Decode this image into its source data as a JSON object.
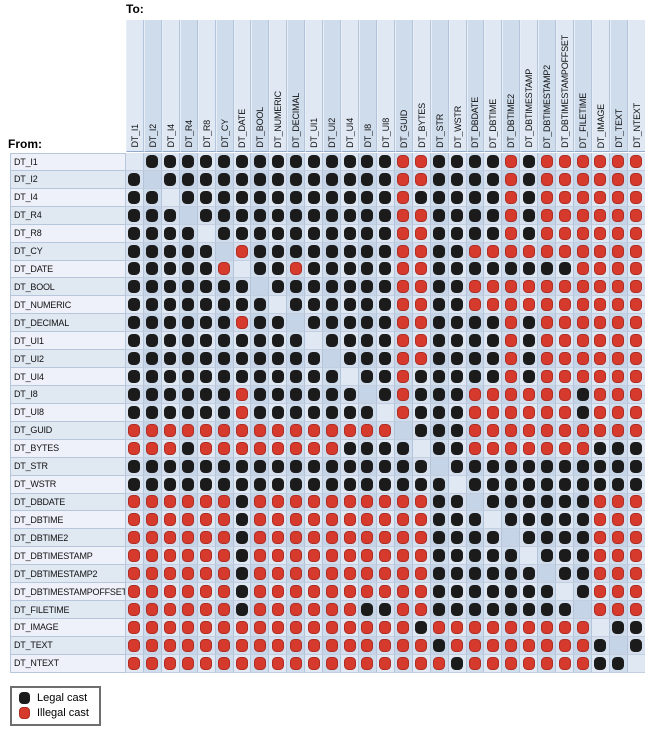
{
  "title_to": "To:",
  "title_from": "From:",
  "legend": {
    "legal_label": "Legal cast",
    "illegal_label": "Illegal cast"
  },
  "colors": {
    "legal_dot": "#1b1b1b",
    "illegal_dot": "#d53a2c",
    "band_light": "#dfe8f3",
    "band_dark": "#cfdcec"
  },
  "chart_data": {
    "type": "heatmap",
    "title": "Cast legality matrix between data types",
    "x_axis_label": "To:",
    "y_axis_label": "From:",
    "legend": [
      "Legal cast",
      "Illegal cast"
    ],
    "encoding": {
      "L": "legal cast (black dot)",
      "X": "illegal cast (red dot)",
      ".": "same type (diagonal, empty cell)"
    },
    "types": [
      "DT_I1",
      "DT_I2",
      "DT_I4",
      "DT_R4",
      "DT_R8",
      "DT_CY",
      "DT_DATE",
      "DT_BOOL",
      "DT_NUMERIC",
      "DT_DECIMAL",
      "DT_UI1",
      "DT_UI2",
      "DT_UI4",
      "DT_I8",
      "DT_UI8",
      "DT_GUID",
      "DT_BYTES",
      "DT_STR",
      "DT_WSTR",
      "DT_DBDATE",
      "DT_DBTIME",
      "DT_DBTIME2",
      "DT_DBTIMESTAMP",
      "DT_DBTIMESTAMP2",
      "DT_DBTIMESTAMPOFFSET",
      "DT_FILETIME",
      "DT_IMAGE",
      "DT_TEXT",
      "DT_NTEXT"
    ],
    "matrix": [
      ".LLLLLLLLLLLLLLXXLLLLXLXXXXXX",
      "L.LLLLLLLLLLLLLXXLLLLXLXXXXXX",
      "LL.LLLLLLLLLLLLXLLLLLXLXXXXXX",
      "LLL.LLLLLLLLLLLXXLLLLXLXXXXXX",
      "LLLL.LLLLLLLLLLXXLLLLXLXXXXXX",
      "LLLLL.XLLLLLLLLXXLLXXXXXXXXXX",
      "LLLLLX.LLXLLLLLXXLLLLLLLLXXXX",
      "LLLLLLL.LLLLLLLXXLLXXXXXXXXXX",
      "LLLLLLLL.LLLLLLXXLLXXXXXXXXXX",
      "LLLLLLXLL.LLLLLXXLLLLXLXXXXXX",
      "LLLLLLLLLL.LLLLXXLLLLXLXXXXXX",
      "LLLLLLLLLLL.LLLXXLLLLXLXXXXXX",
      "LLLLLLLLLLLL.LLXLLLLLXLXXXXXX",
      "LLLLLLXLLLLLL.LXLLLXXXXXXLXXX",
      "LLLLLLXLLLLLLL.XLLLXXXXXXLXXX",
      "XXXXXXXXXXXXXXX.LLLXXXXXXXXXX",
      "XXXLXXXXXXXXLLLL.LLXXXXXXXLLL",
      "LLLLLLLLLLLLLLLLL.LLLLLLLLLLL",
      "LLLLLLLLLLLLLLLLLL.LLLLLLLLLL",
      "XXXXXXLXXXXXXXXXXLL.LLLLLLXXX",
      "XXXXXXLXXXXXXXXXXLLL.LLLLLXXX",
      "XXXXXXLXXXXXXXXXXLLLL.LLLLXXX",
      "XXXXXXLXXXXXXXXXXLLLLL.LLLXXX",
      "XXXXXXLXXXXXXXXXXLLLLLL.LLXXX",
      "XXXXXXLXXXXXXXXXXLLLLLLL.LXXX",
      "XXXXXXLXXXXXXLLXXLLLLLLLL.XXX",
      "XXXXXXXXXXXXXXXXLXXXXXXXXX.LL",
      "XXXXXXXXXXXXXXXXXLXXXXXXXXL.L",
      "XXXXXXXXXXXXXXXXXXLXXXXXXXLL."
    ]
  }
}
